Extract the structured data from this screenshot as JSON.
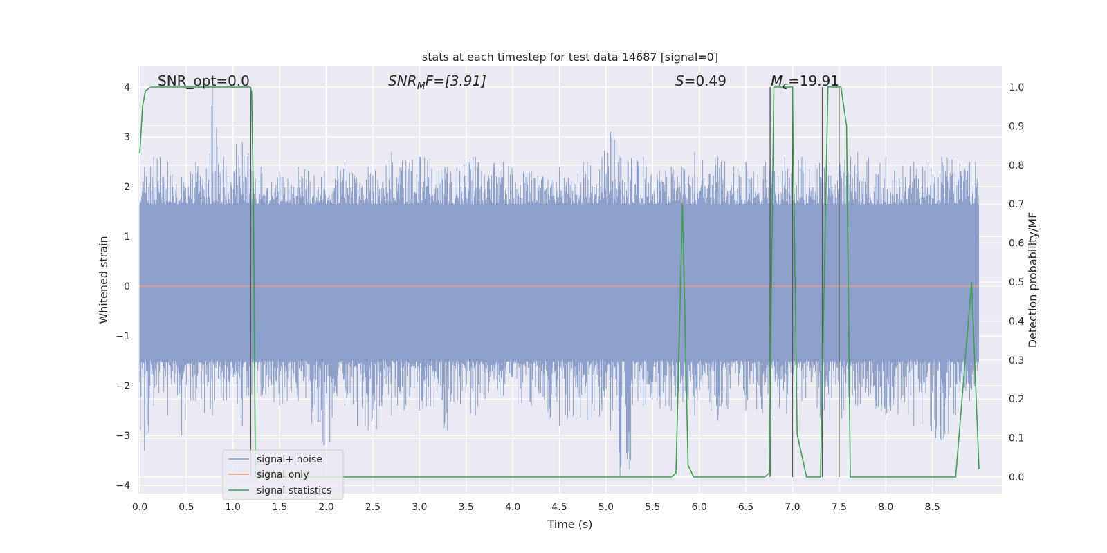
{
  "chart_data": {
    "type": "line",
    "title": "stats at each timestep for test data 14687 [signal=0]",
    "xlabel": "Time (s)",
    "ylabel_left": "Whitened strain",
    "ylabel_right": "Detection probability/MF",
    "xlim": [
      0.0,
      9.0
    ],
    "ylim_left": [
      -4.2,
      4.4
    ],
    "ylim_right": [
      -0.05,
      1.05
    ],
    "xticks": [
      "0.0",
      "0.5",
      "1.0",
      "1.5",
      "2.0",
      "2.5",
      "3.0",
      "3.5",
      "4.0",
      "4.5",
      "5.0",
      "5.5",
      "6.0",
      "6.5",
      "7.0",
      "7.5",
      "8.0",
      "8.5"
    ],
    "yticks_left": [
      "4",
      "3",
      "2",
      "1",
      "0",
      "−1",
      "−2",
      "−3",
      "−4"
    ],
    "yticks_right": [
      "1.0",
      "0.9",
      "0.8",
      "0.7",
      "0.6",
      "0.5",
      "0.4",
      "0.3",
      "0.2",
      "0.1",
      "0.0"
    ],
    "grid": true,
    "annotations": {
      "snr_opt": "SNR_opt=0.0",
      "snr_mf_base": "SNR",
      "snr_mf_sub": "M",
      "snr_mf_rest": "F=[3.91]",
      "s_var": "S",
      "s_rest": "=0.49",
      "mc_var": "M",
      "mc_sub": "c",
      "mc_rest": "=19.91"
    },
    "legend": {
      "position": "lower-left",
      "entries": [
        {
          "label": "signal+ noise",
          "color": "#8da0cb"
        },
        {
          "label": "signal only",
          "color": "#e8a07f"
        },
        {
          "label": "signal statistics",
          "color": "#3f9e4f"
        }
      ]
    },
    "noise_envelope": {
      "name": "signal+ noise",
      "color": "#8da0cb",
      "band_upper": 1.65,
      "band_lower": -1.5,
      "peaks": [
        [
          0.05,
          2.4,
          -3.3
        ],
        [
          0.15,
          2.6,
          -2.4
        ],
        [
          0.3,
          2.5,
          -2.6
        ],
        [
          0.45,
          2.2,
          -3.0
        ],
        [
          0.6,
          2.5,
          -2.3
        ],
        [
          0.78,
          4.0,
          -2.6
        ],
        [
          0.9,
          2.6,
          -2.3
        ],
        [
          1.1,
          2.9,
          -2.8
        ],
        [
          1.3,
          2.4,
          -2.2
        ],
        [
          1.5,
          2.3,
          -2.4
        ],
        [
          1.7,
          2.4,
          -2.3
        ],
        [
          1.98,
          2.3,
          -3.2
        ],
        [
          2.2,
          2.5,
          -2.4
        ],
        [
          2.45,
          2.4,
          -2.9
        ],
        [
          2.7,
          2.7,
          -2.6
        ],
        [
          3.0,
          2.6,
          -2.5
        ],
        [
          3.3,
          2.4,
          -2.9
        ],
        [
          3.6,
          2.6,
          -2.6
        ],
        [
          3.9,
          2.5,
          -2.2
        ],
        [
          4.2,
          2.3,
          -2.4
        ],
        [
          4.5,
          2.4,
          -2.8
        ],
        [
          4.8,
          2.5,
          -2.7
        ],
        [
          5.05,
          3.1,
          -2.9
        ],
        [
          5.15,
          2.6,
          -3.8
        ],
        [
          5.4,
          2.6,
          -2.4
        ],
        [
          5.7,
          2.4,
          -2.5
        ],
        [
          5.95,
          2.7,
          -2.6
        ],
        [
          6.2,
          2.6,
          -2.7
        ],
        [
          6.5,
          2.5,
          -2.5
        ],
        [
          6.8,
          2.6,
          -2.6
        ],
        [
          7.1,
          2.6,
          -2.3
        ],
        [
          7.4,
          2.5,
          -2.7
        ],
        [
          7.7,
          2.7,
          -2.4
        ],
        [
          8.0,
          2.6,
          -2.6
        ],
        [
          8.3,
          2.5,
          -2.8
        ],
        [
          8.6,
          2.6,
          -3.1
        ],
        [
          8.9,
          2.5,
          -2.3
        ]
      ]
    },
    "signal_only": {
      "name": "signal only",
      "color": "#e8a07f",
      "x": [
        0.0,
        9.0
      ],
      "y": [
        0.0,
        0.0
      ]
    },
    "signal_statistics": {
      "name": "signal statistics",
      "axis": "right",
      "color": "#3f9e4f",
      "x": [
        0.0,
        0.03,
        0.06,
        0.12,
        1.18,
        1.2,
        1.22,
        1.24,
        5.7,
        5.75,
        5.82,
        5.88,
        5.94,
        6.0,
        6.55,
        6.7,
        6.75,
        6.8,
        6.85,
        7.0,
        7.05,
        7.15,
        7.3,
        7.38,
        7.45,
        7.52,
        7.58,
        7.62,
        7.7,
        8.3,
        8.75,
        8.92,
        9.0
      ],
      "y": [
        0.83,
        0.95,
        0.99,
        1.0,
        1.0,
        0.99,
        0.7,
        0.0,
        0.0,
        0.01,
        0.7,
        0.03,
        0.0,
        0.0,
        0.0,
        0.0,
        0.01,
        1.0,
        1.0,
        1.0,
        0.11,
        0.0,
        0.0,
        1.0,
        1.0,
        1.0,
        0.9,
        0.0,
        0.0,
        0.0,
        0.0,
        0.5,
        0.02
      ]
    },
    "vertical_markers": [
      1.19,
      6.76,
      7.0,
      7.32,
      7.5
    ],
    "marker_color": "#5a5a5a"
  }
}
